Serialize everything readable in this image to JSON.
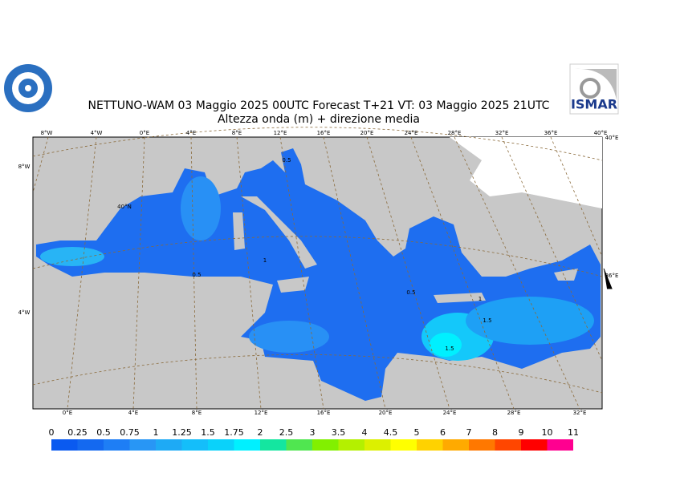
{
  "header": {
    "title": "NETTUNO-WAM  03   Maggio  2025 00UTC Forecast T+21 VT: 03   Maggio  2025 21UTC",
    "subtitle": "Altezza onda (m) + direzione media",
    "logo_text": "ISMAR"
  },
  "map": {
    "top_labels": [
      "8°W",
      "4°W",
      "0°E",
      "4°E",
      "8°E",
      "12°E",
      "16°E",
      "20°E",
      "24°E",
      "28°E",
      "32°E",
      "36°E",
      "40°E"
    ],
    "bottom_labels": [
      "0°E",
      "4°E",
      "8°E",
      "12°E",
      "16°E",
      "20°E",
      "24°E",
      "28°E",
      "32°E"
    ],
    "left_labels": [
      "8°W",
      "4°W"
    ],
    "right_labels": [
      "40°E",
      "36°E"
    ],
    "inner_labels": [
      "40°N"
    ],
    "contour_labels": [
      0.5,
      1,
      0.5,
      0.5,
      1,
      1.5,
      1.5
    ]
  },
  "legend": {
    "levels": [
      0,
      0.25,
      0.5,
      0.75,
      1,
      1.25,
      1.5,
      1.75,
      2,
      2.5,
      3,
      3.5,
      4,
      4.5,
      5,
      6,
      7,
      8,
      9,
      10,
      11
    ],
    "colors": [
      "#0a5af0",
      "#1469f0",
      "#1e7ef5",
      "#2896f5",
      "#1eaaf5",
      "#14befa",
      "#0ad2fa",
      "#00f0ff",
      "#14e6a0",
      "#50e650",
      "#82f000",
      "#b4f000",
      "#dcf000",
      "#ffff00",
      "#ffd200",
      "#ffaa00",
      "#ff7800",
      "#ff4600",
      "#ff0000",
      "#ff0090",
      "#ff14d2"
    ]
  }
}
